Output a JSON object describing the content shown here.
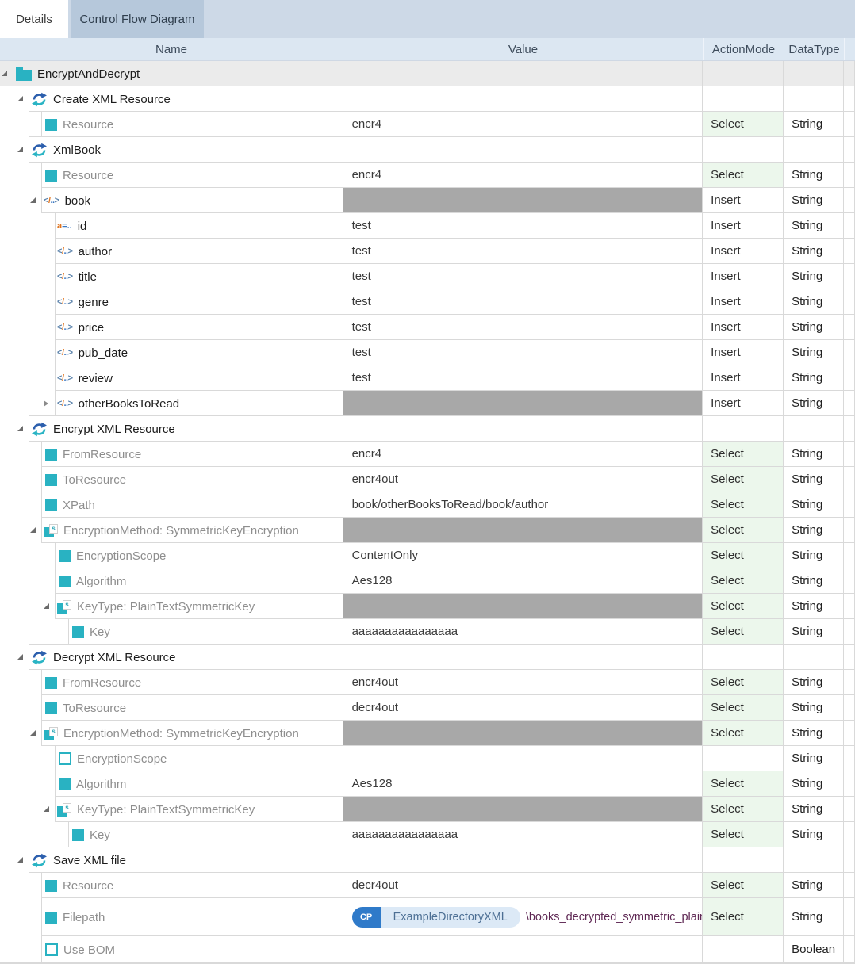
{
  "tabs": [
    {
      "label": "Details",
      "active": true
    },
    {
      "label": "Control Flow Diagram",
      "active": false
    }
  ],
  "columns": {
    "name": "Name",
    "value": "Value",
    "action_mode": "ActionMode",
    "data_type": "DataType"
  },
  "colors": {
    "accent_teal": "#29b2c2",
    "accent_blue": "#2f7ac9",
    "select_cell_bg": "#ecf7ec",
    "disabled_value_bg": "#a8a8a8",
    "root_row_bg": "#ebebeb",
    "tabstrip_bg": "#cdd9e7",
    "inactive_tab_bg": "#b6c8db",
    "header_bg": "#dce7f2",
    "gridline": "#d9d9d9",
    "param_label": "#8e8e8e",
    "filepath_path_text": "#5e2753"
  },
  "filepath_value": {
    "badge": "CP",
    "token": "ExampleDirectoryXML",
    "path": "\\books_decrypted_symmetric_plaintext.xml"
  },
  "rows": [
    {
      "level": 0,
      "icon": "folder",
      "expander": "open",
      "name": "EncryptAndDecrypt",
      "name_style": "dark",
      "value": "",
      "action": "",
      "datatype": "",
      "bg": "gray"
    },
    {
      "level": 1,
      "icon": "refresh",
      "expander": "open",
      "name": "Create XML Resource",
      "name_style": "dark",
      "value": "",
      "action": "",
      "datatype": ""
    },
    {
      "level": 2,
      "icon": "square",
      "expander": null,
      "name": "Resource",
      "name_style": "gray",
      "value": "encr4",
      "action": "Select",
      "datatype": "String"
    },
    {
      "level": 1,
      "icon": "refresh",
      "expander": "open",
      "name": "XmlBook",
      "name_style": "dark",
      "value": "",
      "action": "",
      "datatype": ""
    },
    {
      "level": 2,
      "icon": "square",
      "expander": null,
      "name": "Resource",
      "name_style": "gray",
      "value": "encr4",
      "action": "Select",
      "datatype": "String"
    },
    {
      "level": 2,
      "icon": "xml",
      "expander": "open",
      "name": "book",
      "name_style": "dark",
      "value": "",
      "value_disabled": true,
      "action": "Insert",
      "datatype": "String"
    },
    {
      "level": 3,
      "icon": "attr",
      "expander": null,
      "name": "id",
      "name_style": "dark",
      "value": "test",
      "action": "Insert",
      "datatype": "String"
    },
    {
      "level": 3,
      "icon": "xml",
      "expander": null,
      "name": "author",
      "name_style": "dark",
      "value": "test",
      "action": "Insert",
      "datatype": "String"
    },
    {
      "level": 3,
      "icon": "xml",
      "expander": null,
      "name": "title",
      "name_style": "dark",
      "value": "test",
      "action": "Insert",
      "datatype": "String"
    },
    {
      "level": 3,
      "icon": "xml",
      "expander": null,
      "name": "genre",
      "name_style": "dark",
      "value": "test",
      "action": "Insert",
      "datatype": "String"
    },
    {
      "level": 3,
      "icon": "xml",
      "expander": null,
      "name": "price",
      "name_style": "dark",
      "value": "test",
      "action": "Insert",
      "datatype": "String"
    },
    {
      "level": 3,
      "icon": "xml",
      "expander": null,
      "name": "pub_date",
      "name_style": "dark",
      "value": "test",
      "action": "Insert",
      "datatype": "String"
    },
    {
      "level": 3,
      "icon": "xml",
      "expander": null,
      "name": "review",
      "name_style": "dark",
      "value": "test",
      "action": "Insert",
      "datatype": "String"
    },
    {
      "level": 3,
      "icon": "xml",
      "expander": "closed",
      "name": "otherBooksToRead",
      "name_style": "dark",
      "value": "",
      "value_disabled": true,
      "action": "Insert",
      "datatype": "String"
    },
    {
      "level": 1,
      "icon": "refresh",
      "expander": "open",
      "name": "Encrypt XML Resource",
      "name_style": "dark",
      "value": "",
      "action": "",
      "datatype": ""
    },
    {
      "level": 2,
      "icon": "square",
      "expander": null,
      "name": "FromResource",
      "name_style": "gray",
      "value": "encr4",
      "action": "Select",
      "datatype": "String"
    },
    {
      "level": 2,
      "icon": "square",
      "expander": null,
      "name": "ToResource",
      "name_style": "gray",
      "value": "encr4out",
      "action": "Select",
      "datatype": "String"
    },
    {
      "level": 2,
      "icon": "square",
      "expander": null,
      "name": "XPath",
      "name_style": "gray",
      "value": "book/otherBooksToRead/book/author",
      "action": "Select",
      "datatype": "String"
    },
    {
      "level": 2,
      "icon": "struct",
      "expander": "open",
      "name": "EncryptionMethod: SymmetricKeyEncryption",
      "name_style": "gray",
      "value": "",
      "value_disabled": true,
      "action": "Select",
      "datatype": "String"
    },
    {
      "level": 3,
      "icon": "square",
      "expander": null,
      "name": "EncryptionScope",
      "name_style": "gray",
      "value": "ContentOnly",
      "action": "Select",
      "datatype": "String"
    },
    {
      "level": 3,
      "icon": "square",
      "expander": null,
      "name": "Algorithm",
      "name_style": "gray",
      "value": "Aes128",
      "action": "Select",
      "datatype": "String"
    },
    {
      "level": 3,
      "icon": "struct",
      "expander": "open",
      "name": "KeyType: PlainTextSymmetricKey",
      "name_style": "gray",
      "value": "",
      "value_disabled": true,
      "action": "Select",
      "datatype": "String"
    },
    {
      "level": 4,
      "icon": "square",
      "expander": null,
      "name": "Key",
      "name_style": "gray",
      "value": "aaaaaaaaaaaaaaaa",
      "action": "Select",
      "datatype": "String"
    },
    {
      "level": 1,
      "icon": "refresh",
      "expander": "open",
      "name": "Decrypt XML Resource",
      "name_style": "dark",
      "value": "",
      "action": "",
      "datatype": ""
    },
    {
      "level": 2,
      "icon": "square",
      "expander": null,
      "name": "FromResource",
      "name_style": "gray",
      "value": "encr4out",
      "action": "Select",
      "datatype": "String"
    },
    {
      "level": 2,
      "icon": "square",
      "expander": null,
      "name": "ToResource",
      "name_style": "gray",
      "value": "decr4out",
      "action": "Select",
      "datatype": "String"
    },
    {
      "level": 2,
      "icon": "struct",
      "expander": "open",
      "name": "EncryptionMethod: SymmetricKeyEncryption",
      "name_style": "gray",
      "value": "",
      "value_disabled": true,
      "action": "Select",
      "datatype": "String"
    },
    {
      "level": 3,
      "icon": "square-outline",
      "expander": null,
      "name": "EncryptionScope",
      "name_style": "gray",
      "value": "",
      "action": "",
      "datatype": "String"
    },
    {
      "level": 3,
      "icon": "square",
      "expander": null,
      "name": "Algorithm",
      "name_style": "gray",
      "value": "Aes128",
      "action": "Select",
      "datatype": "String"
    },
    {
      "level": 3,
      "icon": "struct",
      "expander": "open",
      "name": "KeyType: PlainTextSymmetricKey",
      "name_style": "gray",
      "value": "",
      "value_disabled": true,
      "action": "Select",
      "datatype": "String"
    },
    {
      "level": 4,
      "icon": "square",
      "expander": null,
      "name": "Key",
      "name_style": "gray",
      "value": "aaaaaaaaaaaaaaaa",
      "action": "Select",
      "datatype": "String"
    },
    {
      "level": 1,
      "icon": "refresh",
      "expander": "open",
      "name": "Save XML file",
      "name_style": "dark",
      "value": "",
      "action": "",
      "datatype": ""
    },
    {
      "level": 2,
      "icon": "square",
      "expander": null,
      "name": "Resource",
      "name_style": "gray",
      "value": "decr4out",
      "action": "Select",
      "datatype": "String"
    },
    {
      "level": 2,
      "icon": "square",
      "expander": null,
      "name": "Filepath",
      "name_style": "gray",
      "value_filepath": true,
      "action": "Select",
      "datatype": "String",
      "tall": true
    },
    {
      "level": 2,
      "icon": "square-outline",
      "expander": null,
      "name": "Use BOM",
      "name_style": "gray",
      "value": "",
      "action": "",
      "datatype": "Boolean"
    }
  ]
}
